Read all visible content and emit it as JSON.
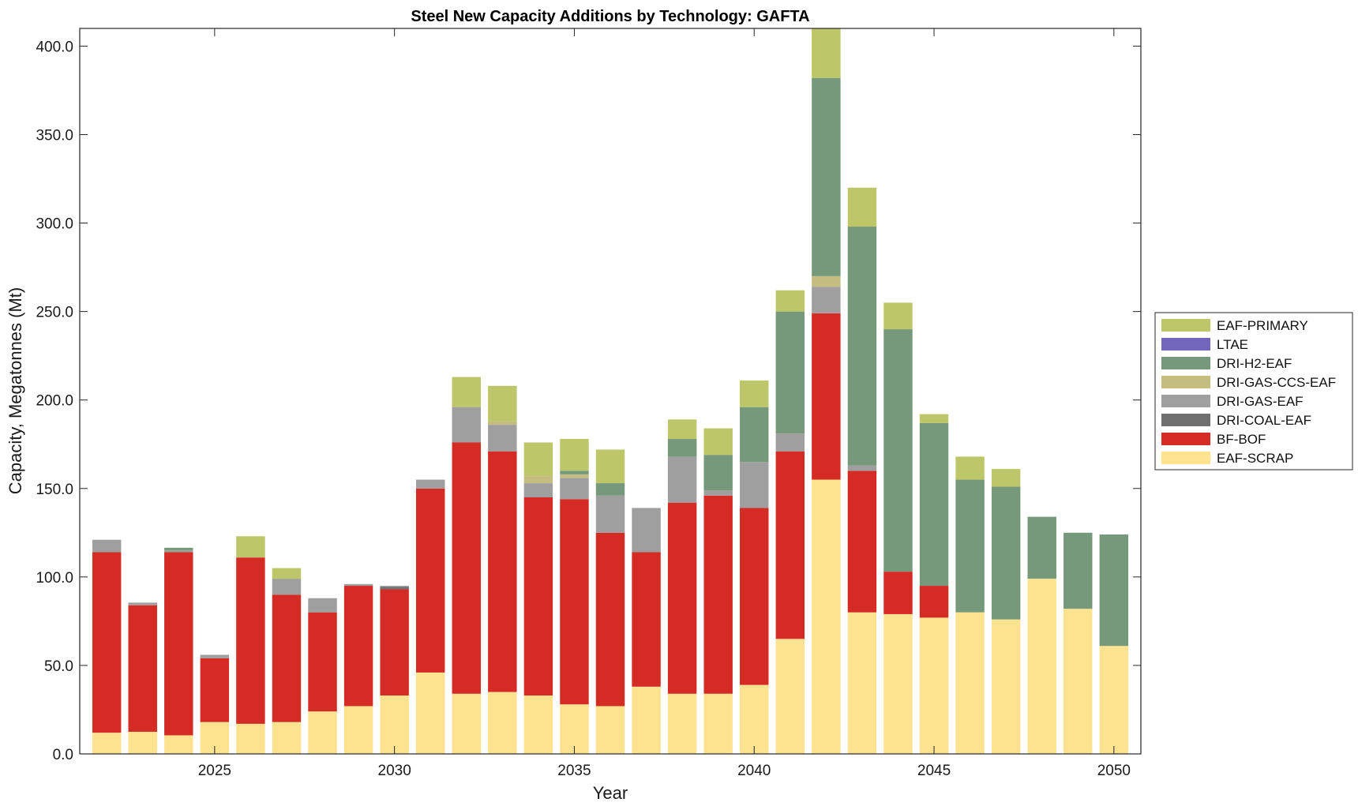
{
  "chart_data": {
    "type": "bar",
    "stacked": true,
    "title": "Steel New Capacity Additions by Technology: GAFTA",
    "xlabel": "Year",
    "ylabel": "Capacity, Megatonnes (Mt)",
    "ylim": [
      0,
      410
    ],
    "yticks": [
      "0.0",
      "50.0",
      "100.0",
      "150.0",
      "200.0",
      "250.0",
      "300.0",
      "350.0",
      "400.0"
    ],
    "xticks": [
      "2025",
      "2030",
      "2035",
      "2040",
      "2045",
      "2050"
    ],
    "grid": false,
    "legend_position": "right",
    "categories": [
      2022,
      2023,
      2024,
      2025,
      2026,
      2027,
      2028,
      2029,
      2030,
      2031,
      2032,
      2033,
      2034,
      2035,
      2036,
      2037,
      2038,
      2039,
      2040,
      2041,
      2042,
      2043,
      2044,
      2045,
      2046,
      2047,
      2048,
      2049,
      2050
    ],
    "series": [
      {
        "name": "EAF-SCRAP",
        "color": "#fde28f",
        "values": [
          12,
          12.5,
          10.5,
          18,
          17,
          18,
          24,
          27,
          33,
          46,
          34,
          35,
          33,
          28,
          27,
          38,
          34,
          34,
          39,
          65,
          155,
          80,
          79,
          77,
          80,
          76,
          99,
          82,
          61
        ]
      },
      {
        "name": "BF-BOF",
        "color": "#d42b25",
        "values": [
          102,
          71.5,
          103.5,
          36,
          94,
          72,
          56,
          68,
          60,
          104,
          142,
          136,
          112,
          116,
          98,
          76,
          108,
          112,
          100,
          106,
          94,
          80,
          24,
          18,
          0,
          0,
          0,
          0,
          0
        ]
      },
      {
        "name": "DRI-COAL-EAF",
        "color": "#6f6f6f",
        "values": [
          0,
          0,
          0,
          0,
          0,
          0,
          0,
          0,
          1.5,
          0,
          0,
          0,
          0,
          0,
          0,
          0,
          0,
          0,
          0,
          0,
          0,
          0,
          0,
          0,
          0,
          0,
          0,
          0,
          0
        ]
      },
      {
        "name": "DRI-GAS-EAF",
        "color": "#9f9f9f",
        "values": [
          7,
          1.5,
          1,
          2,
          0,
          9,
          8,
          1,
          0.5,
          5,
          20,
          15,
          8,
          12,
          21,
          25,
          26,
          3,
          26,
          10,
          15,
          3,
          0,
          0,
          0,
          0,
          0,
          0,
          0
        ]
      },
      {
        "name": "DRI-GAS-CCS-EAF",
        "color": "#c5bc80",
        "values": [
          0,
          0,
          0,
          0,
          0,
          0,
          0,
          0,
          0,
          0,
          0,
          2,
          4,
          2,
          0,
          0,
          0,
          0,
          0,
          0,
          6,
          0,
          0,
          0,
          0,
          0,
          0,
          0,
          0
        ]
      },
      {
        "name": "DRI-H2-EAF",
        "color": "#76997b",
        "values": [
          0,
          0,
          1.5,
          0,
          0,
          0,
          0,
          0,
          0,
          0,
          0,
          0,
          0,
          2,
          7,
          0,
          10,
          20,
          31,
          69,
          112,
          135,
          137,
          92,
          75,
          75,
          35,
          43,
          63
        ]
      },
      {
        "name": "LTAE",
        "color": "#7367bd",
        "values": [
          0,
          0,
          0,
          0,
          0,
          0,
          0,
          0,
          0,
          0,
          0,
          0,
          0,
          0,
          0,
          0,
          0,
          0,
          0,
          0,
          0,
          0,
          0,
          0,
          0,
          0,
          0,
          0,
          0
        ]
      },
      {
        "name": "EAF-PRIMARY",
        "color": "#bdc76a",
        "values": [
          0,
          0,
          0,
          0,
          12,
          6,
          0,
          0,
          0,
          0,
          17,
          20,
          19,
          18,
          19,
          0,
          11,
          15,
          15,
          12,
          28,
          22,
          15,
          5,
          13,
          10,
          0,
          0,
          0
        ]
      }
    ],
    "legend_order": [
      "EAF-PRIMARY",
      "LTAE",
      "DRI-H2-EAF",
      "DRI-GAS-CCS-EAF",
      "DRI-GAS-EAF",
      "DRI-COAL-EAF",
      "BF-BOF",
      "EAF-SCRAP"
    ]
  }
}
